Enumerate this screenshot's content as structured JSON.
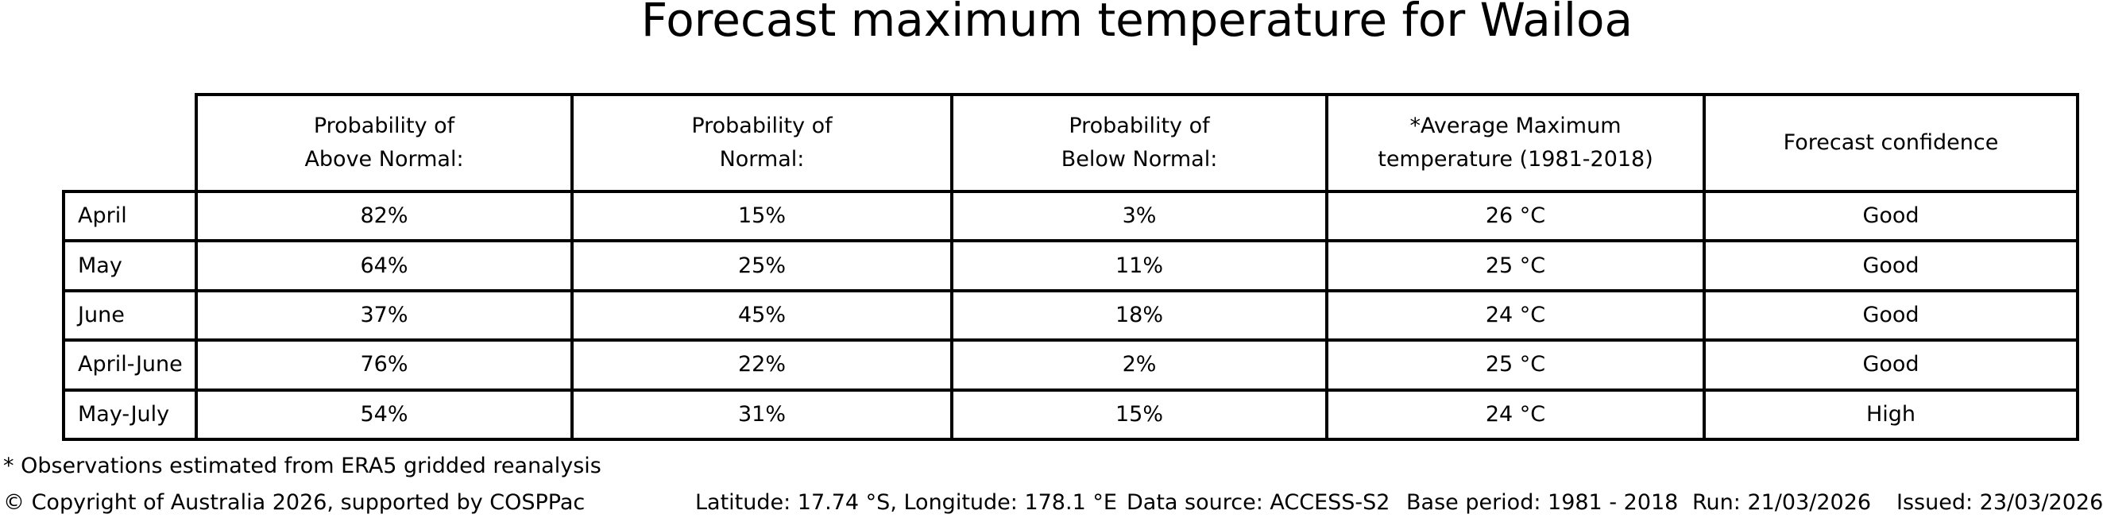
{
  "chart_data": {
    "type": "table",
    "title": "Forecast maximum temperature for Wailoa",
    "columns": [
      "Probability of\nAbove Normal:",
      "Probability of\nNormal:",
      "Probability of\nBelow Normal:",
      "*Average Maximum\ntemperature (1981-2018)",
      "Forecast confidence"
    ],
    "row_label_header": "",
    "rows": [
      [
        "April",
        "82%",
        "15%",
        "3%",
        "26 °C",
        "Good"
      ],
      [
        "May",
        "64%",
        "25%",
        "11%",
        "25 °C",
        "Good"
      ],
      [
        "June",
        "37%",
        "45%",
        "18%",
        "24 °C",
        "Good"
      ],
      [
        "April-June",
        "76%",
        "22%",
        "2%",
        "25 °C",
        "Good"
      ],
      [
        "May-July",
        "54%",
        "31%",
        "15%",
        "24 °C",
        "High"
      ]
    ],
    "layout": {
      "grid": "table with bold black borders",
      "header_alignment": "center",
      "row_label_alignment": "left",
      "value_alignment": "center"
    }
  },
  "footnote": "* Observations estimated from ERA5 gridded reanalysis",
  "footer": {
    "copyright": "© Copyright of Australia 2026, supported by COSPPac",
    "location": "Latitude: 17.74 °S, Longitude: 178.1 °E",
    "data_source": "Data source: ACCESS-S2",
    "base_period": "Base period: 1981 - 2018",
    "run": "Run: 21/03/2026",
    "issued": "Issued: 23/03/2026"
  },
  "colors": {
    "background": "#ffffff",
    "text": "#000000",
    "table_border": "#000000"
  }
}
